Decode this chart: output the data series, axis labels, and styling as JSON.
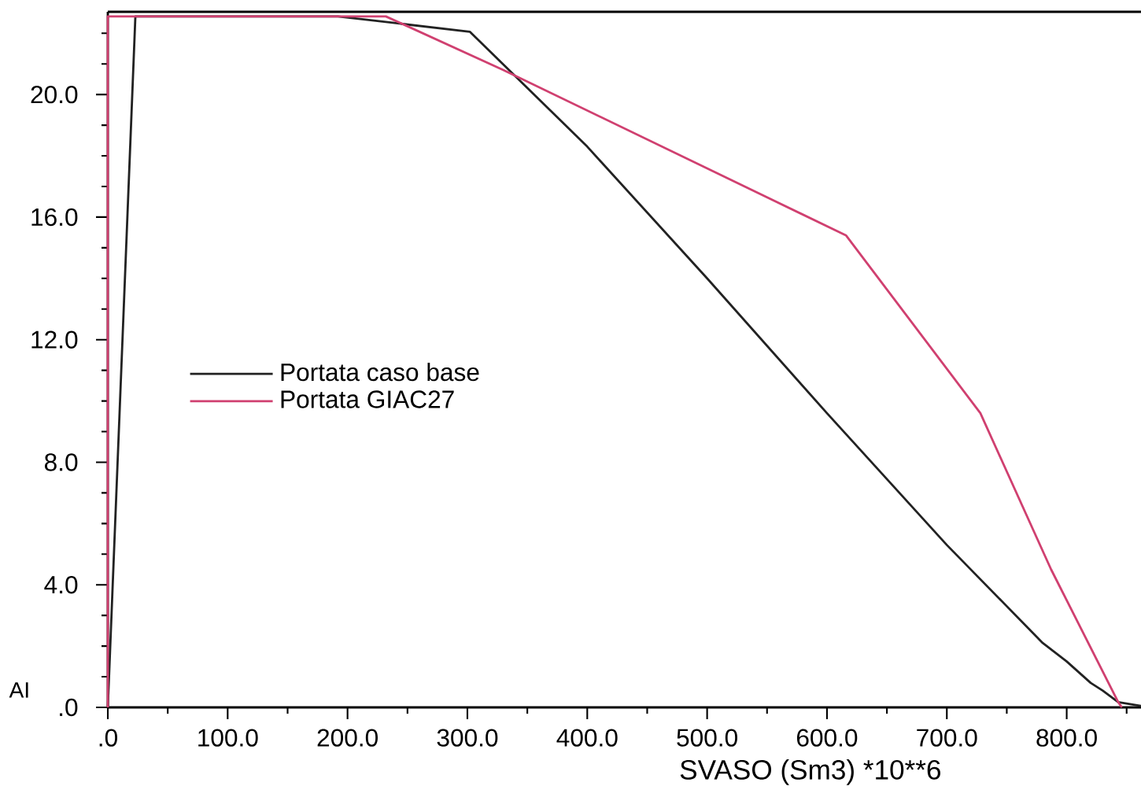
{
  "chart_data": {
    "type": "line",
    "xlabel": "SVASO (Sm3) *10**6",
    "annotations": [
      "AI"
    ],
    "xlim": [
      0,
      862
    ],
    "ylim": [
      0,
      22.7
    ],
    "xticks": [
      {
        "value": 0,
        "label": ".0"
      },
      {
        "value": 50,
        "label": null
      },
      {
        "value": 100,
        "label": "100.0"
      },
      {
        "value": 150,
        "label": null
      },
      {
        "value": 200,
        "label": "200.0"
      },
      {
        "value": 250,
        "label": null
      },
      {
        "value": 300,
        "label": "300.0"
      },
      {
        "value": 350,
        "label": null
      },
      {
        "value": 400,
        "label": "400.0"
      },
      {
        "value": 450,
        "label": null
      },
      {
        "value": 500,
        "label": "500.0"
      },
      {
        "value": 550,
        "label": null
      },
      {
        "value": 600,
        "label": "600.0"
      },
      {
        "value": 650,
        "label": null
      },
      {
        "value": 700,
        "label": "700.0"
      },
      {
        "value": 750,
        "label": null
      },
      {
        "value": 800,
        "label": "800.0"
      },
      {
        "value": 850,
        "label": null
      }
    ],
    "yticks": [
      {
        "value": 0,
        "label": ".0"
      },
      {
        "value": 1,
        "label": null
      },
      {
        "value": 2,
        "label": null
      },
      {
        "value": 3,
        "label": null
      },
      {
        "value": 4,
        "label": "4.0"
      },
      {
        "value": 5,
        "label": null
      },
      {
        "value": 6,
        "label": null
      },
      {
        "value": 7,
        "label": null
      },
      {
        "value": 8,
        "label": "8.0"
      },
      {
        "value": 9,
        "label": null
      },
      {
        "value": 10,
        "label": null
      },
      {
        "value": 11,
        "label": null
      },
      {
        "value": 12,
        "label": "12.0"
      },
      {
        "value": 13,
        "label": null
      },
      {
        "value": 14,
        "label": null
      },
      {
        "value": 15,
        "label": null
      },
      {
        "value": 16,
        "label": "16.0"
      },
      {
        "value": 17,
        "label": null
      },
      {
        "value": 18,
        "label": null
      },
      {
        "value": 19,
        "label": null
      },
      {
        "value": 20,
        "label": "20.0"
      },
      {
        "value": 21,
        "label": null
      },
      {
        "value": 22,
        "label": null
      }
    ],
    "legend": "left",
    "marker": "none",
    "line_style": "solid",
    "series": [
      {
        "name": "Portata caso base",
        "color": "#222222",
        "x": [
          0,
          23,
          192,
          302,
          400,
          500,
          600,
          700,
          780,
          800,
          820,
          830,
          843,
          862
        ],
        "values": [
          0,
          22.55,
          22.55,
          22.05,
          18.3,
          14.0,
          9.6,
          5.3,
          2.1,
          1.5,
          0.8,
          0.55,
          0.17,
          0.05
        ]
      },
      {
        "name": "Portata GIAC27",
        "color": "#d04070",
        "x": [
          0,
          0,
          232,
          330,
          616,
          728,
          787,
          843,
          846
        ],
        "values": [
          0,
          22.55,
          22.55,
          20.8,
          15.4,
          9.6,
          4.5,
          0.17,
          0
        ]
      }
    ]
  }
}
